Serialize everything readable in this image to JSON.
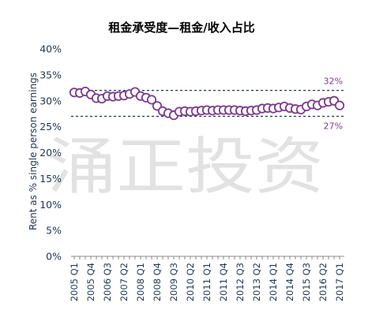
{
  "chart_data": {
    "type": "line",
    "title": "租金承受度—租金/收入占比",
    "ylabel": "Rent as % single person earnings",
    "xlabel": "",
    "ylim": [
      0,
      40
    ],
    "yticks": [
      "0%",
      "5%",
      "10%",
      "15%",
      "20%",
      "25%",
      "30%",
      "35%",
      "40%"
    ],
    "grid": false,
    "x": [
      "2005 Q1",
      "2005 Q2",
      "2005 Q3",
      "2005 Q4",
      "2006 Q1",
      "2006 Q2",
      "2006 Q3",
      "2006 Q4",
      "2007 Q1",
      "2007 Q2",
      "2007 Q3",
      "2007 Q4",
      "2008 Q1",
      "2008 Q2",
      "2008 Q3",
      "2008 Q4",
      "2009 Q1",
      "2009 Q2",
      "2009 Q3",
      "2009 Q4",
      "2010 Q1",
      "2010 Q2",
      "2010 Q3",
      "2010 Q4",
      "2011 Q1",
      "2011 Q2",
      "2011 Q3",
      "2011 Q4",
      "2012 Q1",
      "2012 Q2",
      "2012 Q3",
      "2012 Q4",
      "2013 Q1",
      "2013 Q2",
      "2013 Q3",
      "2013 Q4",
      "2014 Q1",
      "2014 Q2",
      "2014 Q3",
      "2014 Q4",
      "2015 Q1",
      "2015 Q2",
      "2015 Q3",
      "2015 Q4",
      "2016 Q1",
      "2016 Q2",
      "2016 Q3",
      "2016 Q4",
      "2017 Q1"
    ],
    "tick_labels": [
      "2005 Q1",
      "2005 Q4",
      "2006 Q3",
      "2007 Q2",
      "2008 Q1",
      "2008 Q4",
      "2009 Q3",
      "2010 Q2",
      "2011 Q1",
      "2011 Q4",
      "2012 Q3",
      "2013 Q2",
      "2014 Q1",
      "2014 Q4",
      "2015 Q3",
      "2016 Q2",
      "2017 Q1"
    ],
    "series": [
      {
        "name": "",
        "color": "#7b3b8c",
        "values": [
          31.6,
          31.5,
          31.8,
          31.2,
          30.5,
          30.4,
          30.9,
          30.8,
          30.9,
          31.0,
          31.3,
          31.7,
          30.9,
          30.6,
          30.2,
          29.0,
          28.0,
          27.6,
          27.2,
          27.9,
          28.0,
          27.9,
          28.0,
          28.1,
          28.2,
          28.1,
          28.2,
          28.2,
          28.2,
          28.2,
          28.1,
          28.0,
          28.1,
          28.2,
          28.5,
          28.6,
          28.5,
          28.7,
          28.9,
          28.6,
          28.4,
          28.3,
          28.9,
          29.3,
          29.1,
          29.6,
          29.8,
          30.0,
          29.1
        ]
      }
    ],
    "reference_lines": [
      {
        "value": 32,
        "label": "32%",
        "color": "#1f3554"
      },
      {
        "value": 27,
        "label": "27%",
        "color": "#1f3554"
      }
    ],
    "watermark": "涌正投资"
  }
}
